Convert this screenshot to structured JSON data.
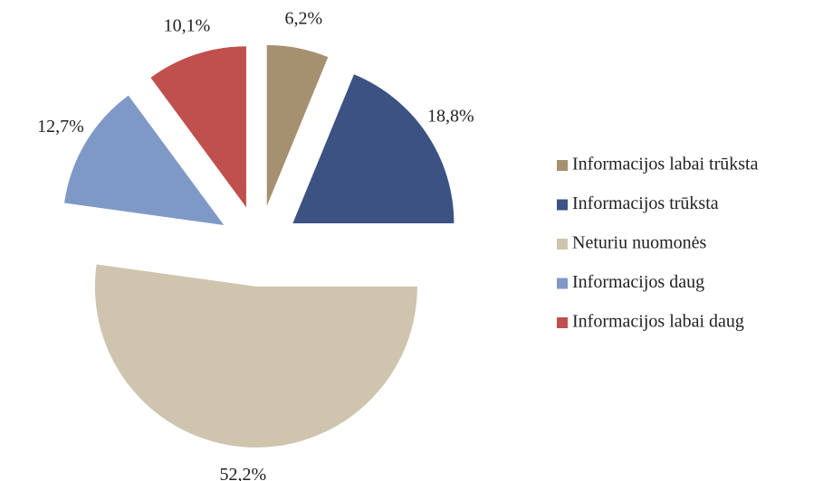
{
  "chart_data": {
    "type": "pie",
    "categories": [
      "Informacijos labai trūksta",
      "Informacijos trūksta",
      "Neturiu nuomonės",
      "Informacijos daug",
      "Informacijos labai daug"
    ],
    "values": [
      6.2,
      18.8,
      52.2,
      12.7,
      10.1
    ],
    "value_labels": [
      "6,2%",
      "18,8%",
      "52,2%",
      "12,7%",
      "10,1%"
    ],
    "colors": [
      "#a59070",
      "#3b5283",
      "#cfc4ae",
      "#7f99c7",
      "#c0504d"
    ],
    "legend": "right"
  }
}
